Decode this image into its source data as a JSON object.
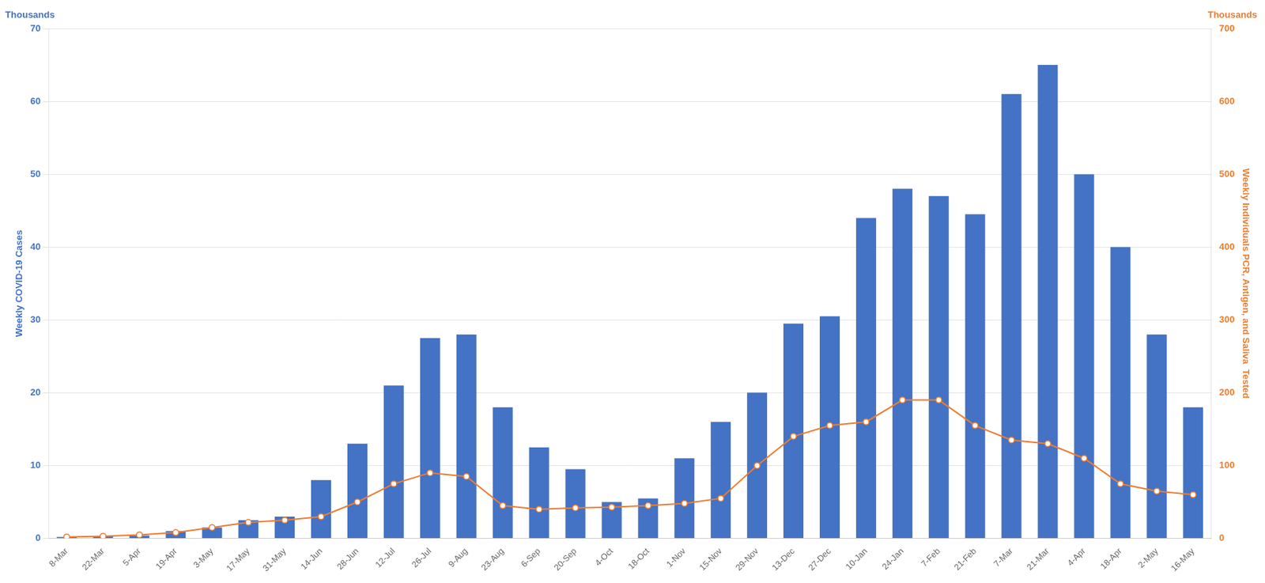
{
  "chart_data": {
    "type": "bar",
    "categories": [
      "8-Mar",
      "22-Mar",
      "5-Apr",
      "19-Apr",
      "3-May",
      "17-May",
      "31-May",
      "14-Jun",
      "28-Jun",
      "12-Jul",
      "26-Jul",
      "9-Aug",
      "23-Aug",
      "6-Sep",
      "20-Sep",
      "4-Oct",
      "18-Oct",
      "1-Nov",
      "15-Nov",
      "29-Nov",
      "13-Dec",
      "27-Dec",
      "10-Jan",
      "24-Jan",
      "7-Feb",
      "21-Feb",
      "7-Mar",
      "21-Mar",
      "4-Apr",
      "18-Apr",
      "2-May",
      "16-May"
    ],
    "series": [
      {
        "color": "#4472C4",
        "values": [
          0.2,
          0.3,
          0.4,
          1.0,
          1.5,
          2.5,
          3.0,
          8.0,
          13.0,
          21.0,
          27.5,
          28.0,
          18.0,
          12.5,
          9.5,
          5.0,
          5.5,
          11.0,
          16.0,
          20.0,
          29.5,
          30.5,
          44.0,
          48.0,
          47.0,
          44.5,
          61.0,
          65.0,
          50.0,
          40.0,
          28.0,
          18.0
        ]
      },
      {
        "type": "line",
        "axis": "y2",
        "color": "#ED7D31",
        "marker": "circle",
        "values": [
          2,
          3,
          5,
          8,
          15,
          22,
          25,
          30,
          50,
          75,
          90,
          85,
          45,
          40,
          42,
          43,
          45,
          48,
          55,
          100,
          140,
          155,
          160,
          190,
          190,
          155,
          135,
          130,
          110,
          75,
          65,
          60
        ]
      }
    ],
    "ylabel": "Weekly COVID-19 Cases",
    "y2label": "Weekly Individuals PCR, Antigen, and Saliva  Tested",
    "annotations": [
      {
        "text": "Thousands",
        "axis": "y"
      },
      {
        "text": "Thousands",
        "axis": "y2"
      }
    ],
    "ylim": [
      0,
      70
    ],
    "yticks": [
      0,
      10,
      20,
      30,
      40,
      50,
      60,
      70
    ],
    "y2lim": [
      0,
      700
    ],
    "y2ticks": [
      0,
      100,
      200,
      300,
      400,
      500,
      600,
      700
    ],
    "grid": true
  }
}
